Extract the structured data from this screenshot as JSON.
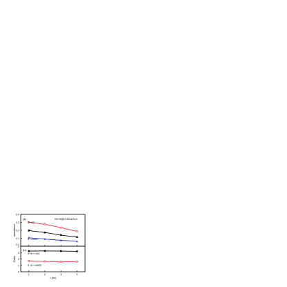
{
  "chart_data": [
    {
      "type": "line",
      "panel_label": "(a)",
      "system_label": "Ni+Ni@1.93 AGeV",
      "ylabel": "abundance",
      "xlabel": "",
      "ylim": [
        0.0,
        0.4
      ],
      "yticks": [
        "0.0",
        "0.1",
        "0.2",
        "0.3",
        "0.4"
      ],
      "xlim": [
        0.5,
        4.5
      ],
      "xticks": [
        "1",
        "2",
        "3",
        "4"
      ],
      "xtick_labels_shown": false,
      "x": [
        1,
        2,
        3,
        4
      ],
      "series": [
        {
          "name": "K⁰×50",
          "color": "#e8323c",
          "marker": "circle-open",
          "values": [
            0.302,
            0.276,
            0.234,
            0.186
          ],
          "annotation": "K⁰×50"
        },
        {
          "name": "K⁺",
          "color": "#000000",
          "marker": "square",
          "values": [
            0.196,
            0.172,
            0.14,
            0.114
          ],
          "annotation": "K⁺"
        },
        {
          "name": "K⁻×1000",
          "color": "#2233cc",
          "marker": "triangle",
          "values": [
            0.106,
            0.09,
            0.074,
            0.061
          ],
          "annotation": "K⁻×1000"
        }
      ]
    },
    {
      "type": "line",
      "panel_label": "(b)",
      "ylabel": "Ratio",
      "xlabel": "L (fm)",
      "ylim": [
        0,
        4
      ],
      "yticks": [
        "0",
        "1",
        "2",
        "3",
        "4"
      ],
      "xlim": [
        0.5,
        4.5
      ],
      "xticks": [
        "1",
        "2",
        "3",
        "4"
      ],
      "xtick_labels_shown": true,
      "x": [
        1,
        2,
        3,
        4
      ],
      "series": [
        {
          "name": "K⁰/K⁺×100",
          "color": "#000000",
          "marker": "square",
          "values": [
            3.24,
            3.26,
            3.24,
            3.2
          ],
          "annotation": "K⁰/K⁺×100"
        },
        {
          "name": "K⁻/K⁺×3000",
          "color": "#e8323c",
          "marker": "circle-open",
          "values": [
            1.7,
            1.62,
            1.55,
            1.6
          ],
          "annotation": "K⁻/K⁺×3000"
        }
      ]
    }
  ]
}
